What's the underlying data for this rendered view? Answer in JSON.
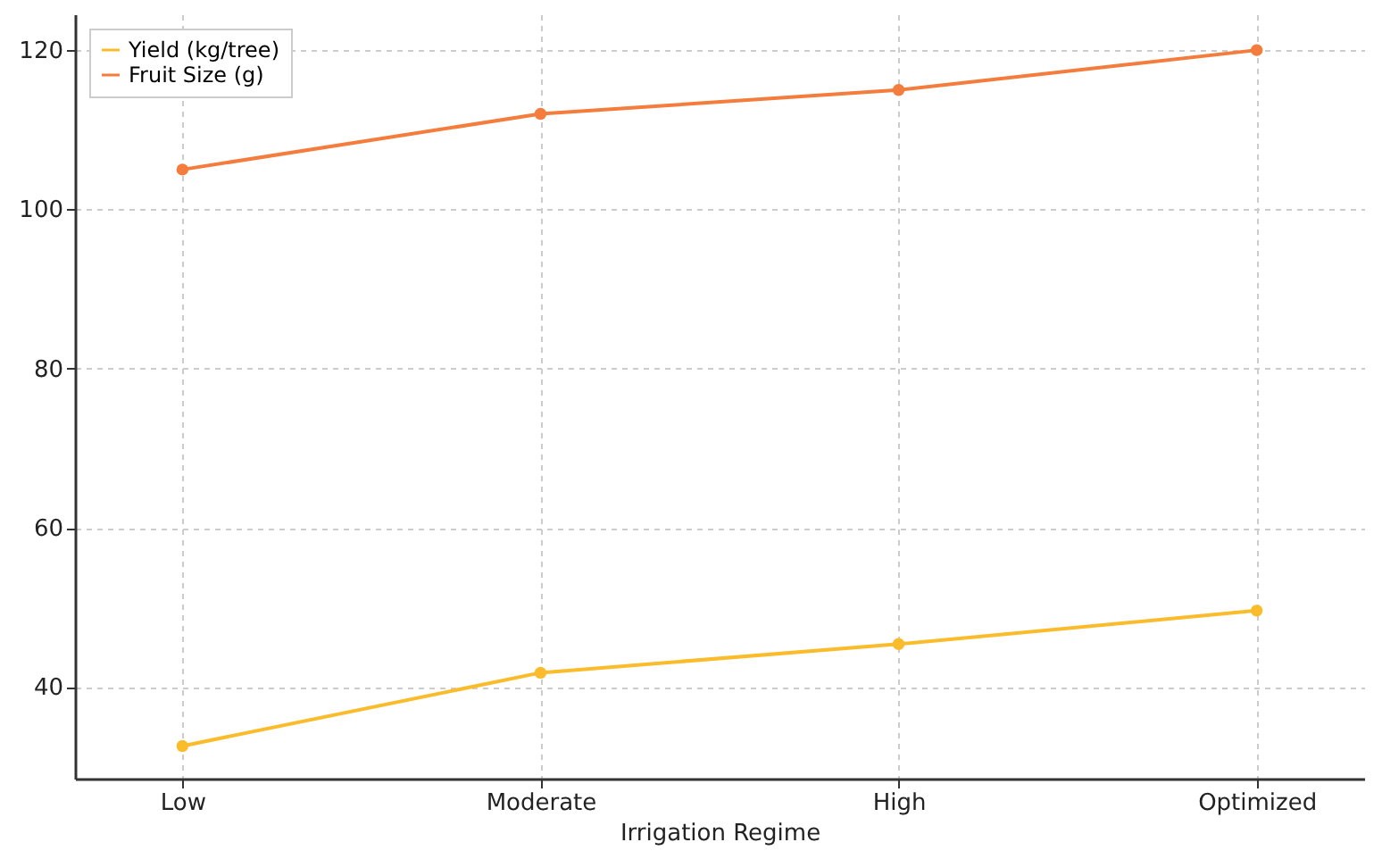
{
  "chart_data": {
    "type": "line",
    "xlabel": "Irrigation Regime",
    "categories": [
      "Low",
      "Moderate",
      "High",
      "Optimized"
    ],
    "series": [
      {
        "name": "Yield (kg/tree)",
        "color": "#fbbc2c",
        "values": [
          32.6,
          41.8,
          45.4,
          49.6
        ]
      },
      {
        "name": "Fruit Size (g)",
        "color": "#f47c3c",
        "values": [
          105,
          112,
          115,
          120
        ]
      }
    ],
    "ylim": [
      28.5,
      124.5
    ],
    "yticks": [
      40,
      60,
      80,
      100,
      120
    ],
    "grid": true,
    "legend": "top left",
    "marker": "circle",
    "line_style": "solid"
  }
}
